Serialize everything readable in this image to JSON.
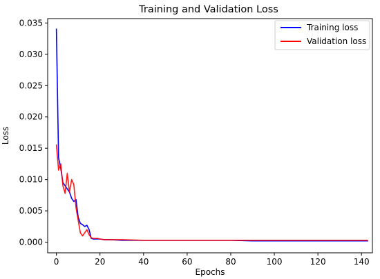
{
  "chart_data": {
    "type": "line",
    "title": "Training and Validation Loss",
    "xlabel": "Epochs",
    "ylabel": "Loss",
    "xlim": [
      -4,
      145
    ],
    "ylim": [
      -0.0017,
      0.0357
    ],
    "xticks": [
      0,
      20,
      40,
      60,
      80,
      100,
      120,
      140
    ],
    "yticks": [
      0.0,
      0.005,
      0.01,
      0.015,
      0.02,
      0.025,
      0.03,
      0.035
    ],
    "ytick_labels": [
      "0.000",
      "0.005",
      "0.010",
      "0.015",
      "0.020",
      "0.025",
      "0.030",
      "0.035"
    ],
    "grid": false,
    "legend_position": "top-right",
    "series": [
      {
        "name": "Training loss",
        "color": "#0000ff",
        "x": [
          0,
          1,
          2,
          3,
          4,
          5,
          6,
          7,
          8,
          9,
          10,
          11,
          12,
          13,
          14,
          15,
          16,
          17,
          18,
          19,
          20,
          22,
          25,
          30,
          40,
          50,
          60,
          70,
          80,
          90,
          100,
          110,
          120,
          130,
          140,
          143
        ],
        "y": [
          0.0341,
          0.0135,
          0.0118,
          0.0095,
          0.009,
          0.0085,
          0.008,
          0.007,
          0.0065,
          0.0068,
          0.004,
          0.003,
          0.0028,
          0.0025,
          0.0027,
          0.002,
          0.0006,
          0.0005,
          0.0005,
          0.0005,
          0.0005,
          0.0004,
          0.0004,
          0.0003,
          0.0003,
          0.0003,
          0.0003,
          0.0003,
          0.0003,
          0.0002,
          0.0002,
          0.0002,
          0.0002,
          0.0002,
          0.0002,
          0.0002
        ]
      },
      {
        "name": "Validation loss",
        "color": "#ff0000",
        "x": [
          0,
          1,
          2,
          3,
          4,
          5,
          6,
          7,
          8,
          9,
          10,
          11,
          12,
          13,
          14,
          15,
          16,
          17,
          18,
          19,
          20,
          22,
          25,
          30,
          40,
          50,
          60,
          70,
          80,
          90,
          100,
          110,
          120,
          130,
          140,
          143
        ],
        "y": [
          0.0156,
          0.0115,
          0.0125,
          0.009,
          0.0078,
          0.011,
          0.008,
          0.01,
          0.0092,
          0.0055,
          0.0035,
          0.0015,
          0.001,
          0.0015,
          0.002,
          0.0012,
          0.0007,
          0.0006,
          0.0006,
          0.0006,
          0.0005,
          0.0004,
          0.0004,
          0.0004,
          0.0003,
          0.0003,
          0.0003,
          0.0003,
          0.0003,
          0.0003,
          0.0003,
          0.0003,
          0.0003,
          0.0003,
          0.0003,
          0.0003
        ]
      }
    ]
  }
}
